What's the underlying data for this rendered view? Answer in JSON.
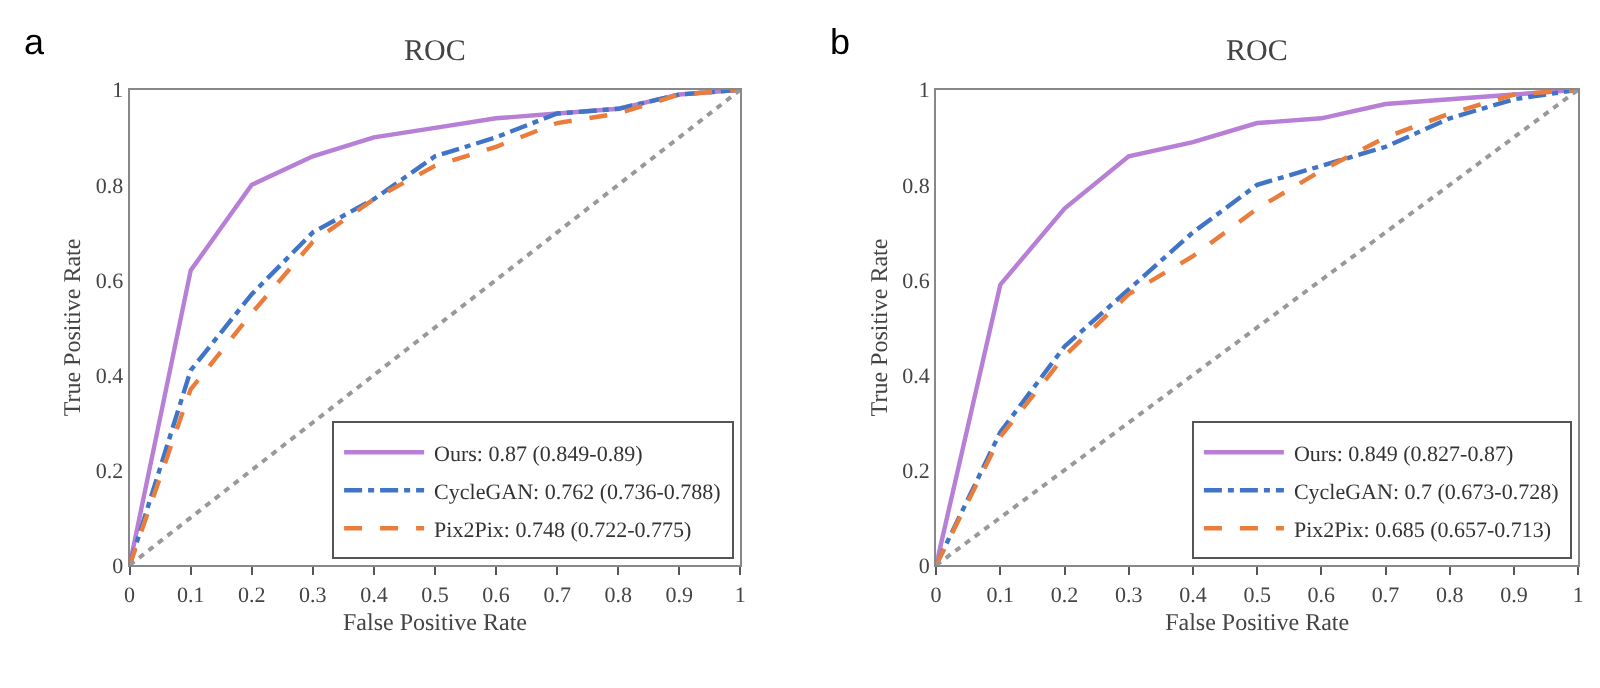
{
  "chart_data": [
    {
      "type": "line",
      "title": "ROC",
      "xlabel": "False Positive Rate",
      "ylabel": "True Positive Rate",
      "annotations": [
        "a"
      ],
      "legend": "bottom right",
      "x": [
        0,
        0.1,
        0.2,
        0.3,
        0.4,
        0.5,
        0.6,
        0.7,
        0.8,
        0.9,
        1
      ],
      "xlim": [
        0,
        1
      ],
      "ylim": [
        0,
        1
      ],
      "xticks": [
        0,
        0.1,
        0.2,
        0.3,
        0.4,
        0.5,
        0.6,
        0.7,
        0.8,
        0.9,
        1
      ],
      "yticks": [
        0,
        0.2,
        0.4,
        0.6,
        0.8,
        1
      ],
      "series": [
        {
          "name": "Ours: 0.87 (0.849-0.89)",
          "color": "#b77fd6",
          "line_style": "solid",
          "values": [
            0,
            0.62,
            0.8,
            0.86,
            0.9,
            0.92,
            0.94,
            0.95,
            0.96,
            0.99,
            1
          ]
        },
        {
          "name": "CycleGAN: 0.762 (0.736-0.788)",
          "color": "#3f74c7",
          "line_style": "dashdot",
          "values": [
            0,
            0.41,
            0.57,
            0.7,
            0.77,
            0.86,
            0.9,
            0.95,
            0.96,
            0.99,
            1
          ]
        },
        {
          "name": "Pix2Pix: 0.748 (0.722-0.775)",
          "color": "#ea7d3c",
          "line_style": "dashed",
          "values": [
            0,
            0.37,
            0.53,
            0.68,
            0.77,
            0.84,
            0.88,
            0.93,
            0.95,
            0.99,
            1
          ]
        },
        {
          "color": "#999999",
          "line_style": "dotted",
          "values": [
            0,
            0.1,
            0.2,
            0.3,
            0.4,
            0.5,
            0.6,
            0.7,
            0.8,
            0.9,
            1
          ]
        }
      ]
    },
    {
      "type": "line",
      "title": "ROC",
      "xlabel": "False Positive Rate",
      "ylabel": "True Positive Rate",
      "annotations": [
        "b"
      ],
      "legend": "bottom right",
      "x": [
        0,
        0.1,
        0.2,
        0.3,
        0.4,
        0.5,
        0.6,
        0.7,
        0.8,
        0.9,
        1
      ],
      "xlim": [
        0,
        1
      ],
      "ylim": [
        0,
        1
      ],
      "xticks": [
        0,
        0.1,
        0.2,
        0.3,
        0.4,
        0.5,
        0.6,
        0.7,
        0.8,
        0.9,
        1
      ],
      "yticks": [
        0,
        0.2,
        0.4,
        0.6,
        0.8,
        1
      ],
      "series": [
        {
          "name": "Ours: 0.849 (0.827-0.87)",
          "color": "#b77fd6",
          "line_style": "solid",
          "values": [
            0,
            0.59,
            0.75,
            0.86,
            0.89,
            0.93,
            0.94,
            0.97,
            0.98,
            0.99,
            1
          ]
        },
        {
          "name": "CycleGAN: 0.7 (0.673-0.728)",
          "color": "#3f74c7",
          "line_style": "dashdot",
          "values": [
            0,
            0.28,
            0.46,
            0.58,
            0.7,
            0.8,
            0.84,
            0.88,
            0.94,
            0.98,
            1
          ]
        },
        {
          "name": "Pix2Pix: 0.685 (0.657-0.713)",
          "color": "#ea7d3c",
          "line_style": "dashed",
          "values": [
            0,
            0.27,
            0.44,
            0.57,
            0.65,
            0.75,
            0.83,
            0.9,
            0.95,
            0.99,
            1
          ]
        },
        {
          "color": "#999999",
          "line_style": "dotted",
          "values": [
            0,
            0.1,
            0.2,
            0.3,
            0.4,
            0.5,
            0.6,
            0.7,
            0.8,
            0.9,
            1
          ]
        }
      ]
    }
  ]
}
